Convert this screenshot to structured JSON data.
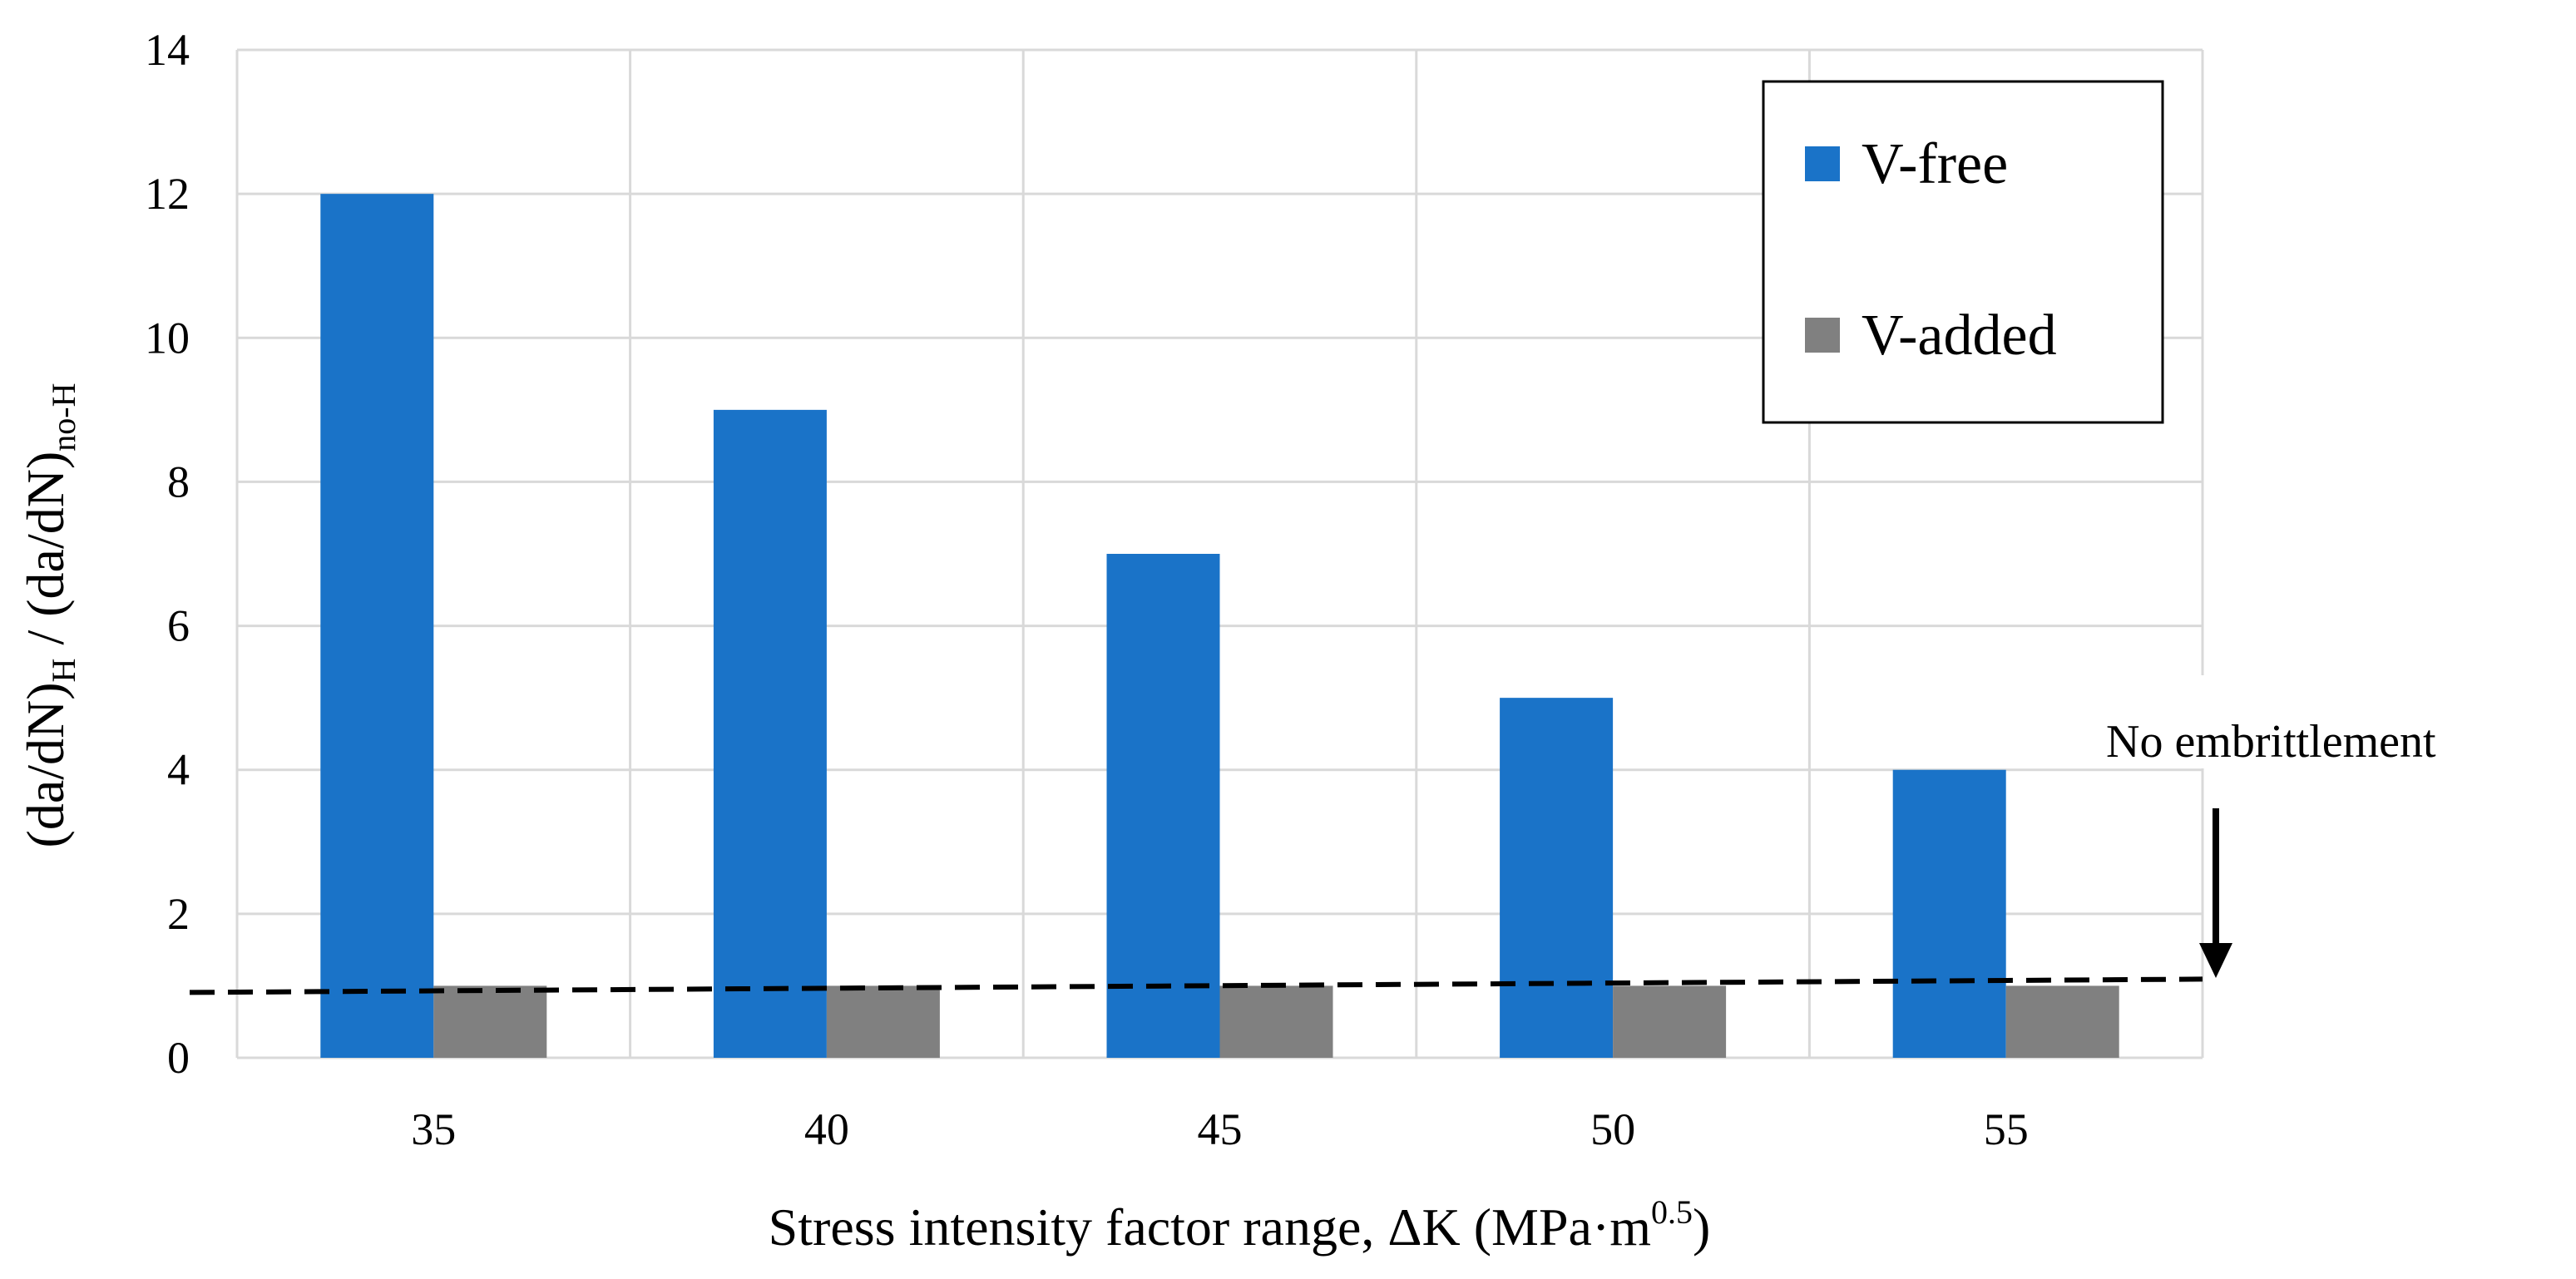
{
  "chart_data": {
    "type": "bar",
    "categories": [
      "35",
      "40",
      "45",
      "50",
      "55"
    ],
    "series": [
      {
        "name": "V-free",
        "color": "#1a73c8",
        "values": [
          12,
          9,
          7,
          5,
          4
        ]
      },
      {
        "name": "V-added",
        "color": "#808080",
        "values": [
          1,
          1,
          1,
          1,
          1
        ]
      }
    ],
    "ylim": [
      0,
      14
    ],
    "yticks": [
      0,
      2,
      4,
      6,
      8,
      10,
      12,
      14
    ],
    "grid": true,
    "legend_position": "top-right",
    "xlabel": {
      "main": "Stress intensity factor range, ΔK (MPa·m",
      "sup": "0.5",
      "end": ")"
    },
    "ylabel": {
      "part1": "(da/dN)",
      "sub1": "H",
      "part2": " / (da/dN)",
      "sub2": "no-H"
    },
    "reference_line": {
      "value": 1,
      "style": "dashed"
    },
    "annotation": "No embrittlement"
  }
}
